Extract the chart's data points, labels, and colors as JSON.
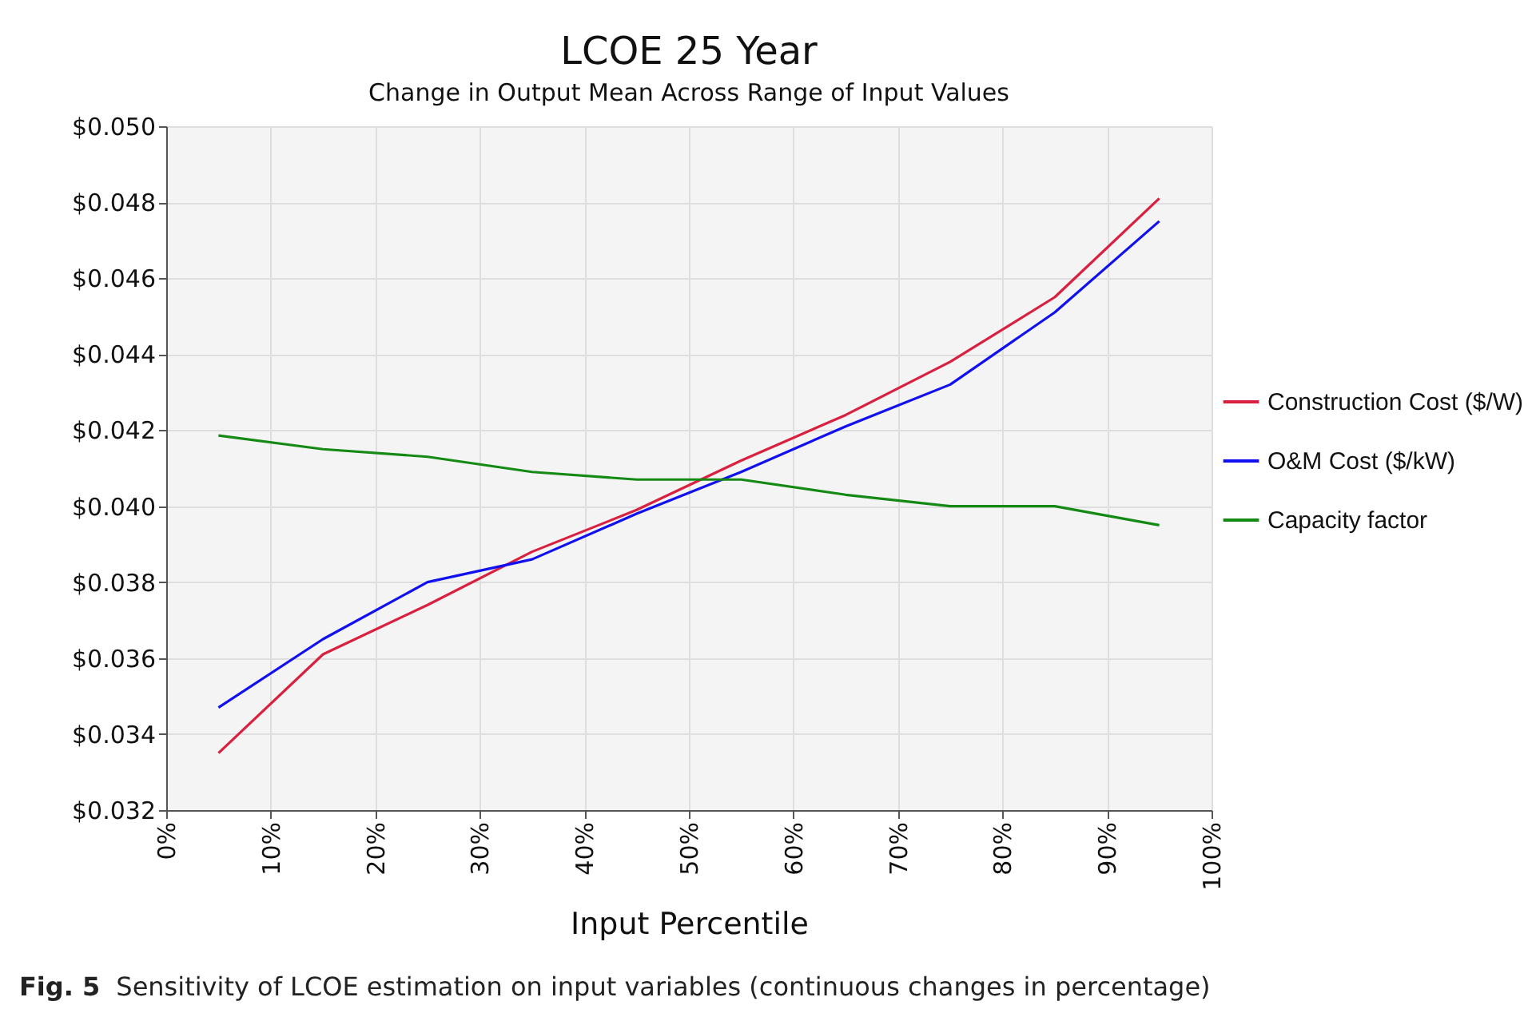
{
  "chart_data": {
    "type": "line",
    "title": "LCOE 25 Year",
    "subtitle": "Change in Output Mean Across Range of Input Values",
    "xlabel": "Input Percentile",
    "x": [
      5,
      15,
      25,
      35,
      45,
      55,
      65,
      75,
      85,
      95
    ],
    "series": [
      {
        "name": "Construction Cost ($/W)",
        "color": "#d9203f",
        "values": [
          0.0335,
          0.0361,
          0.0374,
          0.0388,
          0.0399,
          0.0412,
          0.0424,
          0.0438,
          0.0455,
          0.0481
        ]
      },
      {
        "name": "O&M Cost ($/kW)",
        "color": "#1010f0",
        "values": [
          0.0347,
          0.0365,
          0.038,
          0.0386,
          0.0398,
          0.0409,
          0.0421,
          0.0432,
          0.0451,
          0.0475
        ]
      },
      {
        "name": "Capacity factor",
        "color": "#148a14",
        "values": [
          0.04186,
          0.0415,
          0.0413,
          0.0409,
          0.0407,
          0.0407,
          0.0403,
          0.04,
          0.04,
          0.0395
        ]
      }
    ],
    "xlim": [
      0,
      100
    ],
    "xticks": [
      {
        "value": 0,
        "label": "0%"
      },
      {
        "value": 10,
        "label": "10%"
      },
      {
        "value": 20,
        "label": "20%"
      },
      {
        "value": 30,
        "label": "30%"
      },
      {
        "value": 40,
        "label": "40%"
      },
      {
        "value": 50,
        "label": "50%"
      },
      {
        "value": 60,
        "label": "60%"
      },
      {
        "value": 70,
        "label": "70%"
      },
      {
        "value": 80,
        "label": "80%"
      },
      {
        "value": 90,
        "label": "90%"
      },
      {
        "value": 100,
        "label": "100%"
      }
    ],
    "ylim": [
      0.032,
      0.05
    ],
    "yticks": [
      {
        "value": 0.032,
        "label": "$0.032"
      },
      {
        "value": 0.034,
        "label": "$0.034"
      },
      {
        "value": 0.036,
        "label": "$0.036"
      },
      {
        "value": 0.038,
        "label": "$0.038"
      },
      {
        "value": 0.04,
        "label": "$0.040"
      },
      {
        "value": 0.042,
        "label": "$0.042"
      },
      {
        "value": 0.044,
        "label": "$0.044"
      },
      {
        "value": 0.046,
        "label": "$0.046"
      },
      {
        "value": 0.048,
        "label": "$0.048"
      },
      {
        "value": 0.05,
        "label": "$0.050"
      }
    ],
    "grid": true,
    "legend": "right",
    "line_style": "solid",
    "annotations": [
      "Fig. 5",
      "Sensitivity of LCOE estimation on input variables (continuous changes in percentage)"
    ]
  }
}
